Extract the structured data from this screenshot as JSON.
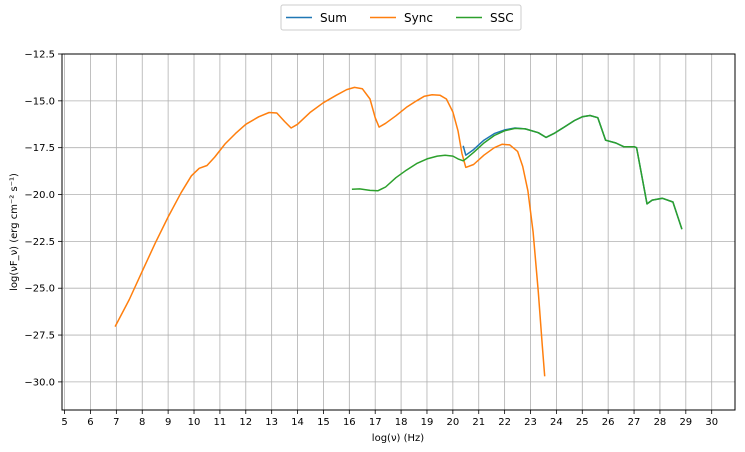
{
  "chart_data": {
    "type": "line",
    "xlabel": "log(ν)  (Hz)",
    "ylabel": "log(νF_ν)  (erg cm⁻²  s⁻¹)",
    "xlim": [
      4.9,
      30.9
    ],
    "ylim": [
      -31.5,
      -12.5
    ],
    "xticks": [
      5,
      6,
      7,
      8,
      9,
      10,
      11,
      12,
      13,
      14,
      15,
      16,
      17,
      18,
      19,
      20,
      21,
      22,
      23,
      24,
      25,
      26,
      27,
      28,
      29,
      30
    ],
    "yticks": [
      -12.5,
      -15.0,
      -17.5,
      -20.0,
      -22.5,
      -25.0,
      -27.5,
      -30.0
    ],
    "xtick_labels": [
      "5",
      "6",
      "7",
      "8",
      "9",
      "10",
      "11",
      "12",
      "13",
      "14",
      "15",
      "16",
      "17",
      "18",
      "19",
      "20",
      "21",
      "22",
      "23",
      "24",
      "25",
      "26",
      "27",
      "28",
      "29",
      "30"
    ],
    "ytick_labels": [
      "−12.5",
      "−15.0",
      "−17.5",
      "−20.0",
      "−22.5",
      "−25.0",
      "−27.5",
      "−30.0"
    ],
    "grid": true,
    "legend_position": "top-center-outside",
    "series": [
      {
        "name": "Sum",
        "color": "#1f77b4",
        "points": [
          [
            20.4,
            -17.4
          ],
          [
            20.5,
            -17.9
          ],
          [
            20.8,
            -17.6
          ],
          [
            21.2,
            -17.1
          ],
          [
            21.6,
            -16.75
          ],
          [
            22.0,
            -16.55
          ],
          [
            22.4,
            -16.45
          ],
          [
            22.8,
            -16.5
          ],
          [
            23.3,
            -16.7
          ],
          [
            23.6,
            -16.95
          ],
          [
            23.9,
            -16.75
          ],
          [
            24.3,
            -16.4
          ],
          [
            24.7,
            -16.05
          ],
          [
            25.0,
            -15.85
          ],
          [
            25.3,
            -15.78
          ],
          [
            25.6,
            -15.9
          ],
          [
            25.9,
            -17.1
          ],
          [
            26.3,
            -17.25
          ],
          [
            26.6,
            -17.45
          ],
          [
            27.0,
            -17.45
          ],
          [
            27.1,
            -17.5
          ],
          [
            27.5,
            -20.5
          ],
          [
            27.7,
            -20.3
          ],
          [
            28.1,
            -20.2
          ],
          [
            28.5,
            -20.4
          ],
          [
            28.85,
            -21.85
          ]
        ]
      },
      {
        "name": "Sync",
        "color": "#ff7f0e",
        "points": [
          [
            6.95,
            -27.05
          ],
          [
            7.5,
            -25.6
          ],
          [
            8.0,
            -24.1
          ],
          [
            8.5,
            -22.6
          ],
          [
            9.0,
            -21.2
          ],
          [
            9.5,
            -19.9
          ],
          [
            9.9,
            -19.0
          ],
          [
            10.2,
            -18.6
          ],
          [
            10.5,
            -18.45
          ],
          [
            10.8,
            -18.0
          ],
          [
            11.2,
            -17.3
          ],
          [
            11.6,
            -16.75
          ],
          [
            12.0,
            -16.25
          ],
          [
            12.5,
            -15.85
          ],
          [
            12.9,
            -15.62
          ],
          [
            13.2,
            -15.65
          ],
          [
            13.5,
            -16.1
          ],
          [
            13.75,
            -16.45
          ],
          [
            14.0,
            -16.25
          ],
          [
            14.5,
            -15.6
          ],
          [
            15.0,
            -15.1
          ],
          [
            15.5,
            -14.7
          ],
          [
            15.9,
            -14.4
          ],
          [
            16.2,
            -14.28
          ],
          [
            16.5,
            -14.35
          ],
          [
            16.8,
            -14.9
          ],
          [
            17.0,
            -15.9
          ],
          [
            17.15,
            -16.4
          ],
          [
            17.4,
            -16.2
          ],
          [
            17.8,
            -15.8
          ],
          [
            18.2,
            -15.35
          ],
          [
            18.6,
            -15.0
          ],
          [
            18.9,
            -14.75
          ],
          [
            19.2,
            -14.68
          ],
          [
            19.5,
            -14.7
          ],
          [
            19.75,
            -14.9
          ],
          [
            20.0,
            -15.6
          ],
          [
            20.2,
            -16.6
          ],
          [
            20.35,
            -17.8
          ],
          [
            20.5,
            -18.55
          ],
          [
            20.8,
            -18.4
          ],
          [
            21.2,
            -17.9
          ],
          [
            21.6,
            -17.5
          ],
          [
            21.9,
            -17.32
          ],
          [
            22.2,
            -17.35
          ],
          [
            22.5,
            -17.7
          ],
          [
            22.7,
            -18.5
          ],
          [
            22.9,
            -19.8
          ],
          [
            23.1,
            -22.0
          ],
          [
            23.3,
            -25.2
          ],
          [
            23.45,
            -28.0
          ],
          [
            23.55,
            -29.7
          ]
        ]
      },
      {
        "name": "SSC",
        "color": "#2ca02c",
        "points": [
          [
            16.1,
            -19.72
          ],
          [
            16.4,
            -19.7
          ],
          [
            16.8,
            -19.78
          ],
          [
            17.1,
            -19.8
          ],
          [
            17.4,
            -19.6
          ],
          [
            17.8,
            -19.1
          ],
          [
            18.2,
            -18.7
          ],
          [
            18.6,
            -18.35
          ],
          [
            19.0,
            -18.1
          ],
          [
            19.4,
            -17.95
          ],
          [
            19.7,
            -17.9
          ],
          [
            20.0,
            -17.95
          ],
          [
            20.2,
            -18.1
          ],
          [
            20.4,
            -18.2
          ],
          [
            20.5,
            -18.1
          ],
          [
            20.8,
            -17.75
          ],
          [
            21.2,
            -17.25
          ],
          [
            21.6,
            -16.85
          ],
          [
            22.0,
            -16.6
          ],
          [
            22.4,
            -16.47
          ],
          [
            22.8,
            -16.5
          ],
          [
            23.3,
            -16.7
          ],
          [
            23.6,
            -16.95
          ],
          [
            23.9,
            -16.75
          ],
          [
            24.3,
            -16.4
          ],
          [
            24.7,
            -16.05
          ],
          [
            25.0,
            -15.85
          ],
          [
            25.3,
            -15.78
          ],
          [
            25.6,
            -15.9
          ],
          [
            25.9,
            -17.1
          ],
          [
            26.3,
            -17.25
          ],
          [
            26.6,
            -17.45
          ],
          [
            27.0,
            -17.45
          ],
          [
            27.1,
            -17.5
          ],
          [
            27.5,
            -20.5
          ],
          [
            27.7,
            -20.3
          ],
          [
            28.1,
            -20.2
          ],
          [
            28.5,
            -20.4
          ],
          [
            28.85,
            -21.85
          ]
        ]
      }
    ]
  }
}
